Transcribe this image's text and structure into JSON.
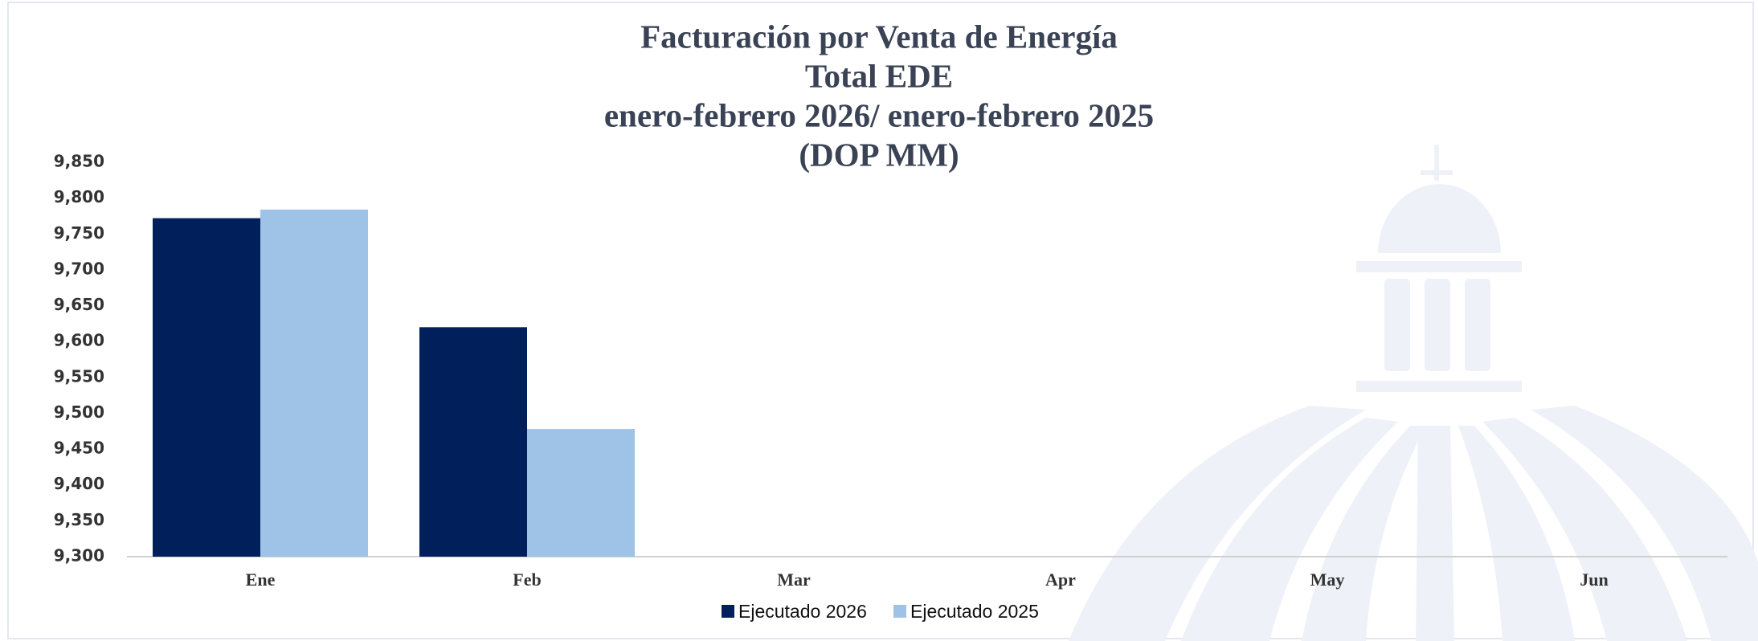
{
  "chart_data": {
    "type": "bar",
    "title": [
      "Facturación por Venta de Energía",
      "Total EDE",
      "enero-febrero 2026/ enero-febrero 2025",
      "(DOP MM)"
    ],
    "categories": [
      "Ene",
      "Feb",
      "Mar",
      "Apr",
      "May",
      "Jun"
    ],
    "series": [
      {
        "name": "Ejecutado 2026",
        "color": "#001f5b",
        "values": [
          9772,
          9620,
          null,
          null,
          null,
          null
        ]
      },
      {
        "name": "Ejecutado 2025",
        "color": "#9fc3e7",
        "values": [
          9784,
          9478,
          null,
          null,
          null,
          null
        ]
      }
    ],
    "ylim": [
      9300,
      9850
    ],
    "yticks": [
      {
        "value": 9300,
        "label": "9,300"
      },
      {
        "value": 9350,
        "label": "9,350"
      },
      {
        "value": 9400,
        "label": "9,400"
      },
      {
        "value": 9450,
        "label": "9,450"
      },
      {
        "value": 9500,
        "label": "9,500"
      },
      {
        "value": 9550,
        "label": "9,550"
      },
      {
        "value": 9600,
        "label": "9,600"
      },
      {
        "value": 9650,
        "label": "9,650"
      },
      {
        "value": 9700,
        "label": "9,700"
      },
      {
        "value": 9750,
        "label": "9,750"
      },
      {
        "value": 9800,
        "label": "9,800"
      },
      {
        "value": 9850,
        "label": "9,850"
      }
    ],
    "grid": false,
    "legend": "bottom"
  }
}
